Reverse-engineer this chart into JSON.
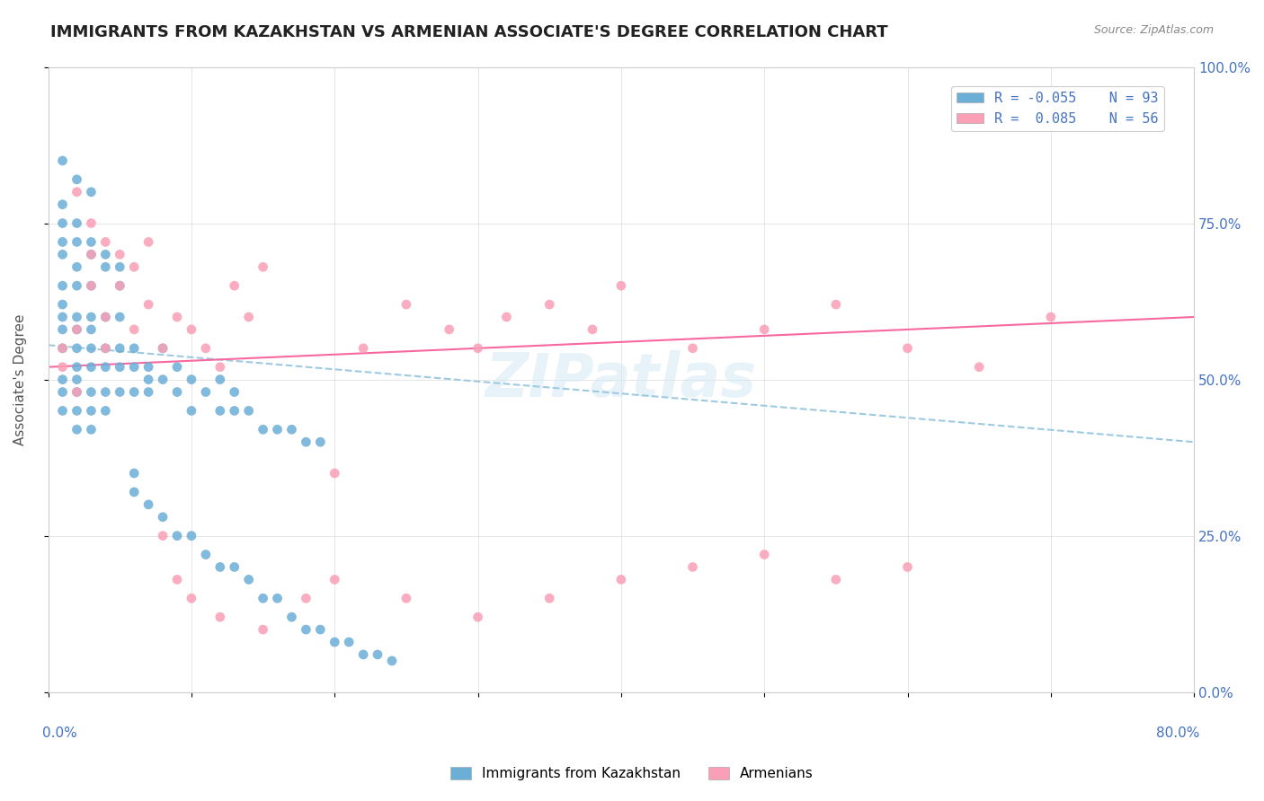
{
  "title": "IMMIGRANTS FROM KAZAKHSTAN VS ARMENIAN ASSOCIATE'S DEGREE CORRELATION CHART",
  "source_text": "Source: ZipAtlas.com",
  "ylabel": "Associate's Degree",
  "right_yticks": [
    0.0,
    0.25,
    0.5,
    0.75,
    1.0
  ],
  "right_yticklabels": [
    "0.0%",
    "25.0%",
    "50.0%",
    "75.0%",
    "100.0%"
  ],
  "watermark": "ZIPatlas",
  "blue_color": "#6baed6",
  "pink_color": "#fa9fb5",
  "blue_line_color": "#9ecae1",
  "pink_line_color": "#f768a1",
  "legend_text_color": "#4472C4",
  "background_color": "#ffffff",
  "grid_color": "#cccccc",
  "x_range": [
    0.0,
    0.8
  ],
  "y_range": [
    0.0,
    1.0
  ],
  "blue_scatter_x": [
    0.01,
    0.01,
    0.01,
    0.01,
    0.01,
    0.01,
    0.01,
    0.01,
    0.01,
    0.01,
    0.02,
    0.02,
    0.02,
    0.02,
    0.02,
    0.02,
    0.02,
    0.02,
    0.02,
    0.02,
    0.03,
    0.03,
    0.03,
    0.03,
    0.03,
    0.03,
    0.03,
    0.03,
    0.04,
    0.04,
    0.04,
    0.04,
    0.04,
    0.05,
    0.05,
    0.05,
    0.05,
    0.06,
    0.06,
    0.06,
    0.07,
    0.07,
    0.07,
    0.08,
    0.08,
    0.09,
    0.09,
    0.1,
    0.1,
    0.11,
    0.12,
    0.12,
    0.13,
    0.13,
    0.14,
    0.15,
    0.16,
    0.17,
    0.18,
    0.19,
    0.01,
    0.01,
    0.02,
    0.02,
    0.03,
    0.03,
    0.04,
    0.04,
    0.05,
    0.05,
    0.06,
    0.06,
    0.07,
    0.08,
    0.09,
    0.1,
    0.11,
    0.12,
    0.13,
    0.14,
    0.15,
    0.16,
    0.17,
    0.18,
    0.19,
    0.2,
    0.21,
    0.22,
    0.23,
    0.24,
    0.01,
    0.02,
    0.03
  ],
  "blue_scatter_y": [
    0.6,
    0.62,
    0.58,
    0.55,
    0.65,
    0.7,
    0.72,
    0.5,
    0.45,
    0.48,
    0.68,
    0.55,
    0.52,
    0.6,
    0.65,
    0.48,
    0.45,
    0.42,
    0.58,
    0.5,
    0.55,
    0.6,
    0.52,
    0.48,
    0.45,
    0.65,
    0.58,
    0.42,
    0.55,
    0.6,
    0.52,
    0.48,
    0.45,
    0.55,
    0.52,
    0.48,
    0.6,
    0.52,
    0.48,
    0.55,
    0.5,
    0.52,
    0.48,
    0.55,
    0.5,
    0.48,
    0.52,
    0.45,
    0.5,
    0.48,
    0.45,
    0.5,
    0.45,
    0.48,
    0.45,
    0.42,
    0.42,
    0.42,
    0.4,
    0.4,
    0.75,
    0.78,
    0.72,
    0.75,
    0.7,
    0.72,
    0.68,
    0.7,
    0.65,
    0.68,
    0.35,
    0.32,
    0.3,
    0.28,
    0.25,
    0.25,
    0.22,
    0.2,
    0.2,
    0.18,
    0.15,
    0.15,
    0.12,
    0.1,
    0.1,
    0.08,
    0.08,
    0.06,
    0.06,
    0.05,
    0.85,
    0.82,
    0.8
  ],
  "pink_scatter_x": [
    0.01,
    0.01,
    0.02,
    0.02,
    0.03,
    0.03,
    0.04,
    0.04,
    0.05,
    0.06,
    0.07,
    0.08,
    0.09,
    0.1,
    0.11,
    0.12,
    0.13,
    0.14,
    0.15,
    0.2,
    0.22,
    0.25,
    0.28,
    0.3,
    0.32,
    0.35,
    0.38,
    0.4,
    0.45,
    0.5,
    0.55,
    0.6,
    0.65,
    0.7,
    0.02,
    0.03,
    0.04,
    0.05,
    0.06,
    0.07,
    0.08,
    0.09,
    0.1,
    0.12,
    0.15,
    0.18,
    0.2,
    0.25,
    0.3,
    0.35,
    0.4,
    0.45,
    0.5,
    0.55,
    0.6,
    0.75
  ],
  "pink_scatter_y": [
    0.55,
    0.52,
    0.58,
    0.48,
    0.65,
    0.7,
    0.6,
    0.55,
    0.65,
    0.58,
    0.62,
    0.55,
    0.6,
    0.58,
    0.55,
    0.52,
    0.65,
    0.6,
    0.68,
    0.35,
    0.55,
    0.62,
    0.58,
    0.55,
    0.6,
    0.62,
    0.58,
    0.65,
    0.55,
    0.58,
    0.62,
    0.55,
    0.52,
    0.6,
    0.8,
    0.75,
    0.72,
    0.7,
    0.68,
    0.72,
    0.25,
    0.18,
    0.15,
    0.12,
    0.1,
    0.15,
    0.18,
    0.15,
    0.12,
    0.15,
    0.18,
    0.2,
    0.22,
    0.18,
    0.2,
    0.95
  ],
  "blue_trend_x": [
    0.0,
    0.8
  ],
  "blue_trend_y": [
    0.555,
    0.4
  ],
  "pink_trend_x": [
    0.0,
    0.8
  ],
  "pink_trend_y": [
    0.52,
    0.6
  ]
}
